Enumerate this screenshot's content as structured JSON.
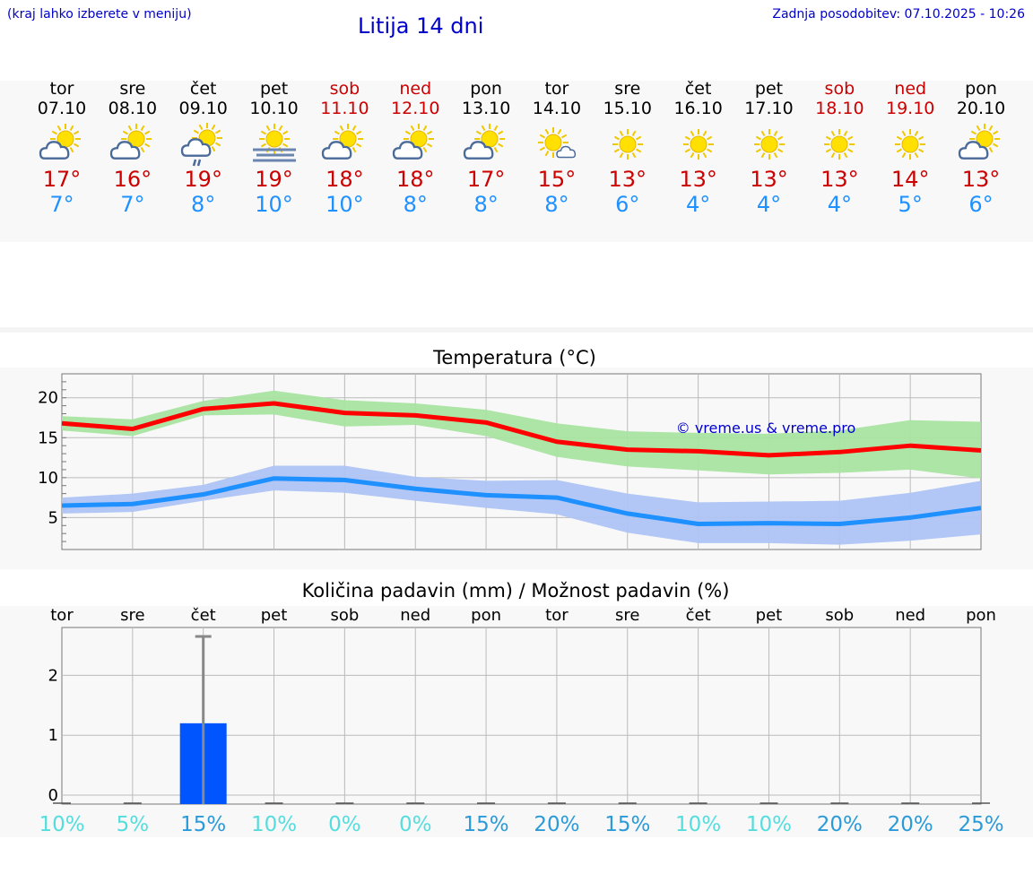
{
  "header": {
    "note_left": "(kraj lahko izberete v meniju)",
    "title": "Litija 14 dni",
    "note_right": "Zadnja posodobitev: 07.10.2025 - 10:26"
  },
  "colors": {
    "max_temp": "#cc0000",
    "min_temp": "#1e90ff",
    "max_line": "#ff0000",
    "min_line": "#1e90ff",
    "max_band": "#a8e4a0",
    "min_band": "#aec4f4",
    "precip_bar": "#0055ff",
    "pct_low": "#55dddd",
    "pct_high": "#2a9ad8"
  },
  "days": [
    {
      "name": "tor",
      "date": "07.10",
      "weekend": false,
      "icon": "sun-cloud-icon",
      "max": "17°",
      "min": "7°"
    },
    {
      "name": "sre",
      "date": "08.10",
      "weekend": false,
      "icon": "sun-cloud-icon",
      "max": "16°",
      "min": "7°"
    },
    {
      "name": "čet",
      "date": "09.10",
      "weekend": false,
      "icon": "sun-cloud-rain-icon",
      "max": "19°",
      "min": "8°"
    },
    {
      "name": "pet",
      "date": "10.10",
      "weekend": false,
      "icon": "sun-fog-icon",
      "max": "19°",
      "min": "10°"
    },
    {
      "name": "sob",
      "date": "11.10",
      "weekend": true,
      "icon": "sun-cloud-icon",
      "max": "18°",
      "min": "10°"
    },
    {
      "name": "ned",
      "date": "12.10",
      "weekend": true,
      "icon": "sun-cloud-icon",
      "max": "18°",
      "min": "8°"
    },
    {
      "name": "pon",
      "date": "13.10",
      "weekend": false,
      "icon": "sun-cloud-icon",
      "max": "17°",
      "min": "8°"
    },
    {
      "name": "tor",
      "date": "14.10",
      "weekend": false,
      "icon": "sun-small-cloud-icon",
      "max": "15°",
      "min": "8°"
    },
    {
      "name": "sre",
      "date": "15.10",
      "weekend": false,
      "icon": "sun-icon",
      "max": "13°",
      "min": "6°"
    },
    {
      "name": "čet",
      "date": "16.10",
      "weekend": false,
      "icon": "sun-icon",
      "max": "13°",
      "min": "4°"
    },
    {
      "name": "pet",
      "date": "17.10",
      "weekend": false,
      "icon": "sun-icon",
      "max": "13°",
      "min": "4°"
    },
    {
      "name": "sob",
      "date": "18.10",
      "weekend": true,
      "icon": "sun-icon",
      "max": "13°",
      "min": "4°"
    },
    {
      "name": "ned",
      "date": "19.10",
      "weekend": true,
      "icon": "sun-icon",
      "max": "14°",
      "min": "5°"
    },
    {
      "name": "pon",
      "date": "20.10",
      "weekend": false,
      "icon": "sun-cloud-icon",
      "max": "13°",
      "min": "6°"
    }
  ],
  "chart_data": [
    {
      "type": "line",
      "title": "Temperatura (°C)",
      "ylim": [
        1,
        23
      ],
      "yticks": [
        5,
        10,
        15,
        20
      ],
      "grid": true,
      "watermark": "© vreme.us & vreme.pro",
      "categories": [
        "07.10",
        "08.10",
        "09.10",
        "10.10",
        "11.10",
        "12.10",
        "13.10",
        "14.10",
        "15.10",
        "16.10",
        "17.10",
        "18.10",
        "19.10",
        "20.10"
      ],
      "series": [
        {
          "name": "max",
          "values": [
            16.8,
            16.1,
            18.6,
            19.3,
            18.1,
            17.8,
            16.9,
            14.5,
            13.5,
            13.3,
            12.8,
            13.2,
            14.0,
            13.4
          ],
          "band_low": [
            15.9,
            15.2,
            17.8,
            17.9,
            16.4,
            16.6,
            15.2,
            12.6,
            11.4,
            10.9,
            10.4,
            10.6,
            11.0,
            9.9
          ],
          "band_high": [
            17.7,
            17.3,
            19.6,
            20.9,
            19.7,
            19.3,
            18.5,
            16.8,
            15.8,
            15.6,
            15.5,
            15.9,
            17.2,
            17.0
          ]
        },
        {
          "name": "min",
          "values": [
            6.5,
            6.7,
            7.9,
            9.9,
            9.7,
            8.6,
            7.8,
            7.5,
            5.5,
            4.2,
            4.3,
            4.2,
            5.0,
            6.2
          ],
          "band_low": [
            5.5,
            5.7,
            7.1,
            8.4,
            8.1,
            7.1,
            6.2,
            5.4,
            3.1,
            1.8,
            1.8,
            1.6,
            2.1,
            2.9
          ],
          "band_high": [
            7.5,
            8.0,
            9.1,
            11.5,
            11.5,
            10.1,
            9.6,
            9.7,
            8.0,
            6.9,
            7.0,
            7.1,
            8.1,
            9.6
          ]
        }
      ]
    },
    {
      "type": "bar",
      "title": "Količina padavin (mm) / Možnost padavin (%)",
      "ylim": [
        -0.15,
        2.8
      ],
      "yticks": [
        0,
        1,
        2
      ],
      "grid": true,
      "categories": [
        "tor",
        "sre",
        "čet",
        "pet",
        "sob",
        "ned",
        "pon",
        "tor",
        "sre",
        "čet",
        "pet",
        "sob",
        "ned",
        "pon"
      ],
      "values": [
        0,
        0,
        1.2,
        0,
        0,
        0,
        0,
        0,
        0,
        0,
        0,
        0,
        0,
        0
      ],
      "error_high": [
        null,
        null,
        2.65,
        null,
        null,
        null,
        null,
        null,
        null,
        null,
        null,
        null,
        null,
        null
      ],
      "probability": [
        "10%",
        "5%",
        "15%",
        "10%",
        "0%",
        "0%",
        "15%",
        "20%",
        "15%",
        "10%",
        "10%",
        "20%",
        "20%",
        "25%"
      ],
      "probability_values": [
        10,
        5,
        15,
        10,
        0,
        0,
        15,
        20,
        15,
        10,
        10,
        20,
        20,
        25
      ]
    }
  ]
}
